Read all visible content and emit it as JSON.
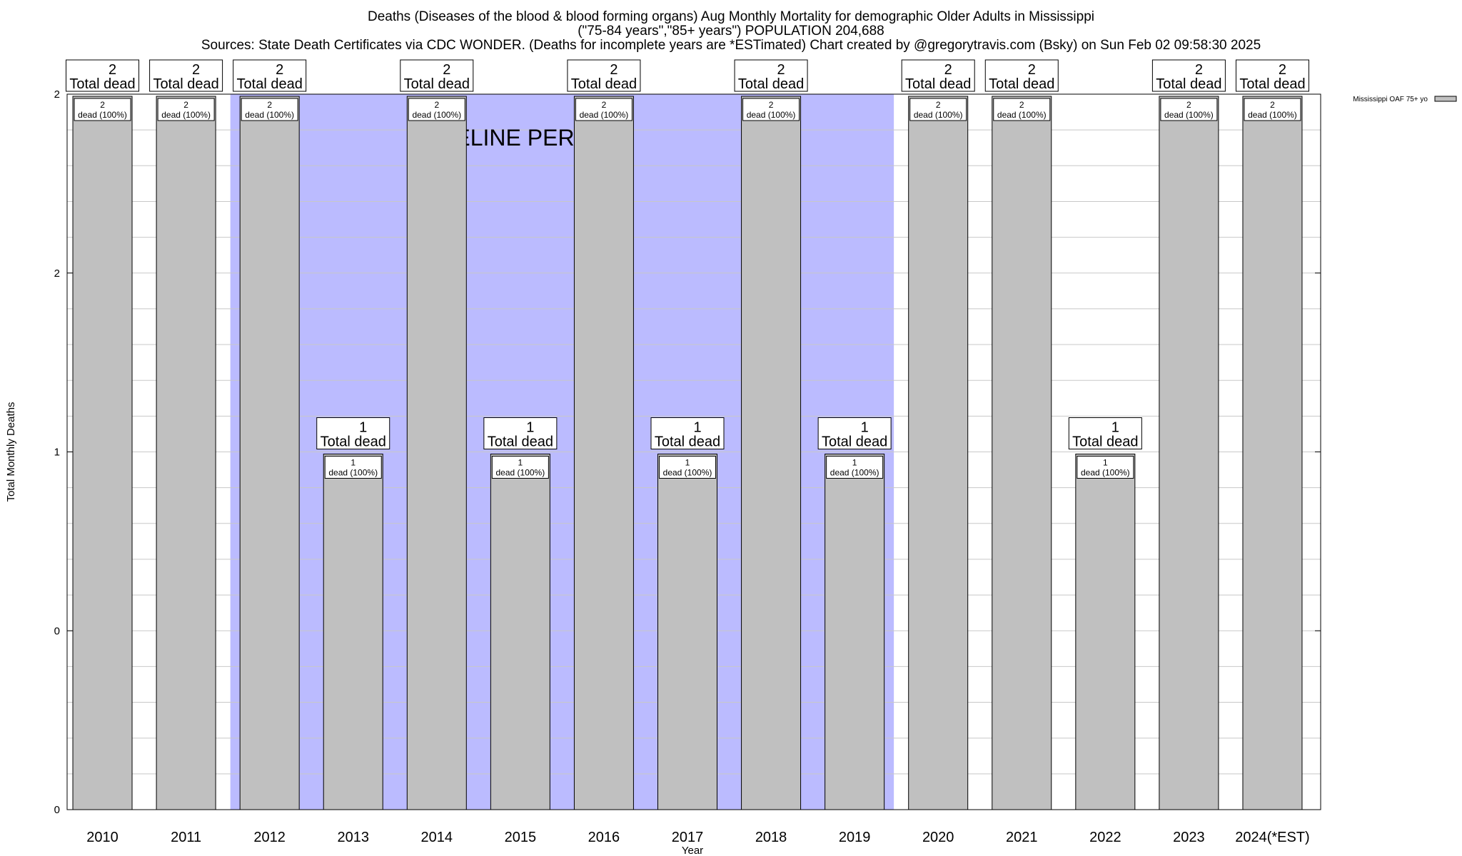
{
  "titles": {
    "line1": "Deaths (Diseases of the blood & blood forming organs) Aug Monthly Mortality for demographic Older Adults in Mississippi",
    "line2": "(\"75-84 years\",\"85+ years\") POPULATION 204,688",
    "line3": "Sources: State Death Certificates via CDC WONDER. (Deaths for incomplete years are *ESTimated)          Chart created by @gregorytravis.com (Bsky) on Sun Feb 02 09:58:30 2025"
  },
  "chart_data": {
    "type": "bar",
    "categories": [
      "2010",
      "2011",
      "2012",
      "2013",
      "2014",
      "2015",
      "2016",
      "2017",
      "2018",
      "2019",
      "2020",
      "2021",
      "2022",
      "2023",
      "2024(*EST)"
    ],
    "series": [
      {
        "name": "Mississippi OAF 75+ yo",
        "values": [
          2,
          2,
          2,
          1,
          2,
          1,
          2,
          1,
          2,
          1,
          2,
          2,
          1,
          2,
          2
        ],
        "color": "#c0c0c0"
      }
    ],
    "bar_labels": [
      "2\ndead (100%)",
      "2\ndead (100%)",
      "2\ndead (100%)",
      "1\ndead (100%)",
      "2\ndead (100%)",
      "1\ndead (100%)",
      "2\ndead (100%)",
      "1\ndead (100%)",
      "2\ndead (100%)",
      "1\ndead (100%)",
      "2\ndead (100%)",
      "2\ndead (100%)",
      "1\ndead (100%)",
      "2\ndead (100%)",
      "2\ndead (100%)"
    ],
    "total_labels": [
      "2\nTotal dead",
      "2\nTotal dead",
      "2\nTotal dead",
      "1\nTotal dead",
      "2\nTotal dead",
      "1\nTotal dead",
      "2\nTotal dead",
      "1\nTotal dead",
      "2\nTotal dead",
      "1\nTotal dead",
      "2\nTotal dead",
      "2\nTotal dead",
      "1\nTotal dead",
      "2\nTotal dead",
      "2\nTotal dead"
    ],
    "xlabel": "Year",
    "ylabel": "Total Monthly Deaths",
    "ylim": [
      0,
      2
    ],
    "yticks": [
      {
        "value": 0,
        "label": "0"
      },
      {
        "value": 0.5,
        "label": "0"
      },
      {
        "value": 1,
        "label": "1"
      },
      {
        "value": 1.5,
        "label": "2"
      },
      {
        "value": 2,
        "label": "2"
      }
    ],
    "baseline_period": {
      "label": "BASELINE PERIOD",
      "from": "2012",
      "to": "2019",
      "color": "#bbbbff"
    },
    "legend": {
      "position": "top-right",
      "label": "Mississippi OAF 75+ yo"
    },
    "grid": true
  }
}
